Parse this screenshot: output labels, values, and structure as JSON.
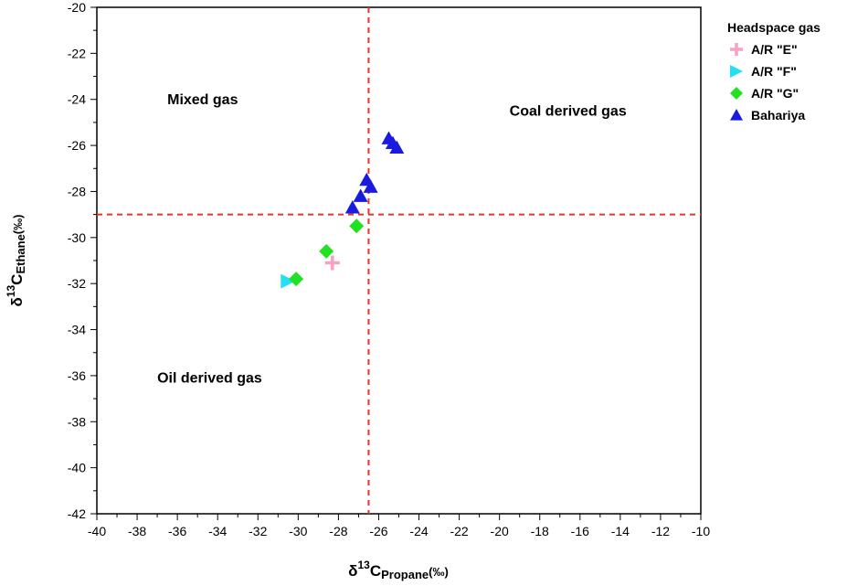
{
  "chart_data": {
    "type": "scatter",
    "xlabel": "δ13CPropane(‰)",
    "xlabel_parts": {
      "prefix": "δ",
      "sup": "13",
      "main": "C",
      "sub": "Propane",
      "suffix": "(‰)"
    },
    "ylabel": "δ13CEthane(‰)",
    "ylabel_parts": {
      "prefix": "δ",
      "sup": "13",
      "main": "C",
      "sub": "Ethane",
      "suffix": "(‰)"
    },
    "xlim": [
      -40,
      -10
    ],
    "ylim": [
      -42,
      -20
    ],
    "x_ticks": [
      -40,
      -38,
      -36,
      -34,
      -32,
      -30,
      -28,
      -26,
      -24,
      -22,
      -20,
      -18,
      -16,
      -14,
      -12,
      -10
    ],
    "y_ticks": [
      -20,
      -22,
      -24,
      -26,
      -28,
      -30,
      -32,
      -34,
      -36,
      -38,
      -40,
      -42
    ],
    "grid": false,
    "legend_title": "Headspace gas",
    "legend_position": "right, outside plot",
    "reference_lines": [
      {
        "orientation": "vertical",
        "x": -26.5,
        "color": "#e8332a",
        "style": "dashed"
      },
      {
        "orientation": "horizontal",
        "y": -29,
        "color": "#e8332a",
        "style": "dashed"
      }
    ],
    "annotations": [
      {
        "text": "Mixed gas",
        "x": -36.5,
        "y": -24.2
      },
      {
        "text": "Coal derived gas",
        "x": -19.5,
        "y": -24.7
      },
      {
        "text": "Oil derived gas",
        "x": -37,
        "y": -36.3
      }
    ],
    "series": [
      {
        "name": "A/R \"E\"",
        "marker": "plus",
        "color": "#f7a1c4",
        "points": [
          {
            "x": -28.3,
            "y": -31.1
          }
        ]
      },
      {
        "name": "A/R \"F\"",
        "marker": "triangle-right",
        "color": "#22e0f0",
        "points": [
          {
            "x": -30.5,
            "y": -31.9
          }
        ]
      },
      {
        "name": "A/R \"G\"",
        "marker": "diamond",
        "color": "#22e022",
        "points": [
          {
            "x": -30.1,
            "y": -31.8
          },
          {
            "x": -28.6,
            "y": -30.6
          },
          {
            "x": -27.1,
            "y": -29.5
          }
        ]
      },
      {
        "name": "Bahariya",
        "marker": "triangle-up",
        "color": "#1a1ae0",
        "points": [
          {
            "x": -27.3,
            "y": -28.7
          },
          {
            "x": -26.9,
            "y": -28.2
          },
          {
            "x": -26.6,
            "y": -27.5
          },
          {
            "x": -26.4,
            "y": -27.8
          },
          {
            "x": -25.5,
            "y": -25.7
          },
          {
            "x": -25.3,
            "y": -25.9
          },
          {
            "x": -25.1,
            "y": -26.1
          }
        ]
      }
    ]
  }
}
